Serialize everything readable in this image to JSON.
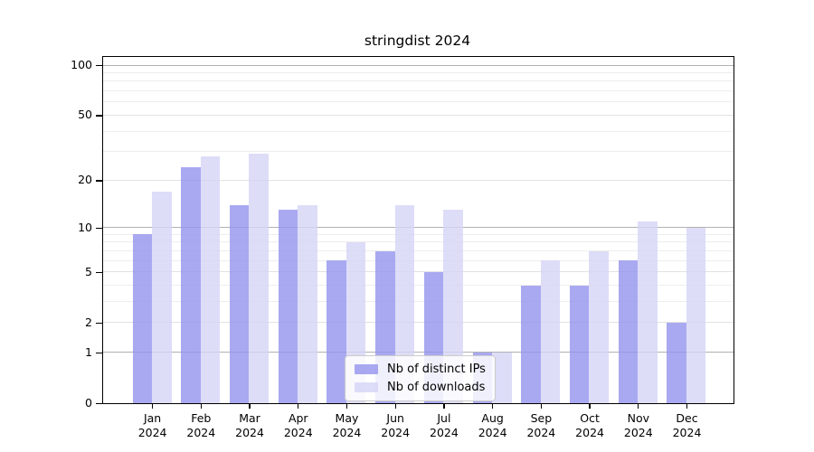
{
  "title": "stringdist 2024",
  "chart_data": {
    "type": "bar",
    "title": "stringdist 2024",
    "categories": [
      "Jan 2024",
      "Feb 2024",
      "Mar 2024",
      "Apr 2024",
      "May 2024",
      "Jun 2024",
      "Jul 2024",
      "Aug 2024",
      "Sep 2024",
      "Oct 2024",
      "Nov 2024",
      "Dec 2024"
    ],
    "month_labels": [
      "Jan",
      "Feb",
      "Mar",
      "Apr",
      "May",
      "Jun",
      "Jul",
      "Aug",
      "Sep",
      "Oct",
      "Nov",
      "Dec"
    ],
    "year_label": "2024",
    "series": [
      {
        "name": "Nb of distinct IPs",
        "values": [
          9,
          24,
          14,
          13,
          6,
          7,
          5,
          1,
          4,
          4,
          6,
          2
        ],
        "color": "rgba(148,148,238,0.8)"
      },
      {
        "name": "Nb of downloads",
        "values": [
          17,
          28,
          29,
          14,
          8,
          14,
          13,
          1,
          6,
          7,
          11,
          10
        ],
        "color": "rgba(212,212,246,0.8)"
      }
    ],
    "yscale": "log1p",
    "ylim": [
      0,
      112
    ],
    "y_tick_values": [
      0,
      1,
      2,
      5,
      10,
      20,
      50,
      100
    ],
    "y_tick_labels": [
      "0",
      "1",
      "2",
      "5",
      "10",
      "20",
      "50",
      "100"
    ],
    "grid": true,
    "gridline_values_major": [
      1,
      10,
      100
    ],
    "gridline_values_mid": [
      2,
      5,
      20,
      50
    ],
    "gridline_values_minor": [
      3,
      4,
      6,
      7,
      8,
      9,
      30,
      40,
      60,
      70,
      80,
      90
    ],
    "grid_color_major": "#b2b2b2",
    "grid_color_mid": "#e2e2e2",
    "grid_color_minor": "#ededed",
    "legend_position": "lower center",
    "axis_color": "#000000",
    "background_color": "#ffffff"
  }
}
